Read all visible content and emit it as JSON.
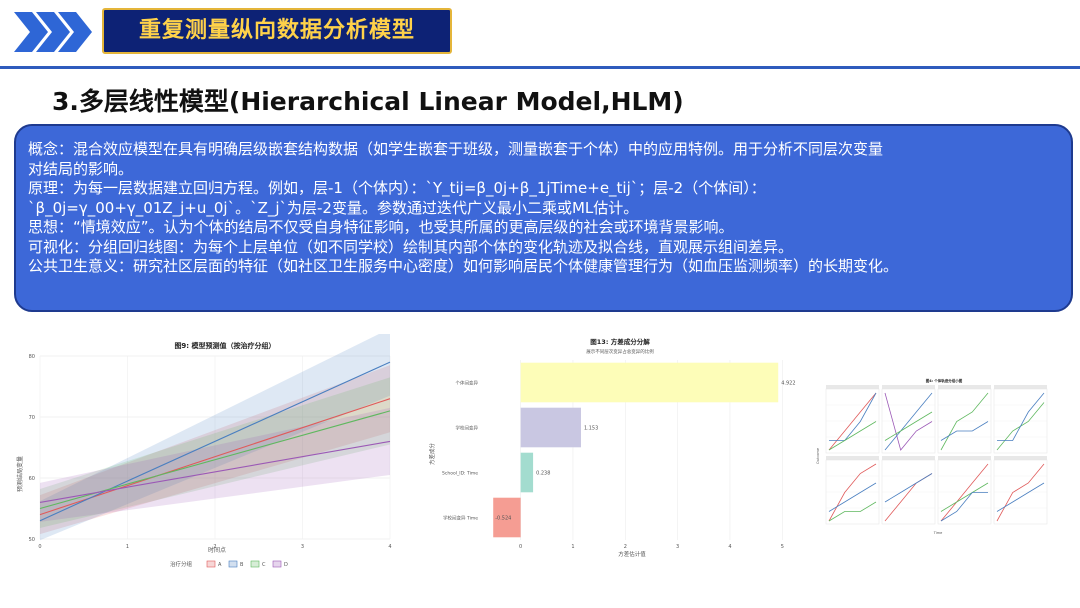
{
  "header": {
    "title": "重复测量纵向数据分析模型",
    "accent": "#0d2275",
    "title_color": "#ffd24a",
    "arrow_color": "#2e66d6"
  },
  "section": {
    "title": "3.多层线性模型(Hierarchical Linear Model,HLM)"
  },
  "concept": {
    "lines": [
      "概念：混合效应模型在具有明确层级嵌套结构数据（如学生嵌套于班级，测量嵌套于个体）中的应用特例。用于分析不同层次变量",
      "对结局的影响。",
      "原理：为每一层数据建立回归方程。例如，层-1（个体内）：`Y_tij=β_0j+β_1jTime+e_tij`；层-2（个体间）：",
      "`β_0j=γ_00+γ_01Z_j+u_0j`。`Z_j`为层-2变量。参数通过迭代广义最小二乘或ML估计。",
      "思想：“情境效应”。认为个体的结局不仅受自身特征影响，也受其所属的更高层级的社会或环境背景影响。",
      "可视化：分组回归线图：为每个上层单位（如不同学校）绘制其内部个体的变化轨迹及拟合线，直观展示组间差异。",
      "公共卫生意义：研究社区层面的特征（如社区卫生服务中心密度）如何影响居民个体健康管理行为（如血压监测频率）的长期变化。"
    ],
    "bg": "#3d68d8"
  },
  "chart_data": [
    {
      "type": "line",
      "title": "图9: 模型预测值（按治疗分组）",
      "xlabel": "时间点",
      "ylabel": "预测结局变量",
      "x": [
        0,
        1,
        2,
        3,
        4
      ],
      "xlim": [
        0,
        4
      ],
      "ylim": [
        50,
        80
      ],
      "yticks": [
        50,
        60,
        70,
        80
      ],
      "legend_title": "治疗分组",
      "legend_position": "bottom",
      "series": [
        {
          "name": "A",
          "color": "#e05a5a",
          "start": 54,
          "end": 73
        },
        {
          "name": "B",
          "color": "#4a7fc0",
          "start": 53,
          "end": 79
        },
        {
          "name": "C",
          "color": "#5fb85f",
          "start": 55,
          "end": 71
        },
        {
          "name": "D",
          "color": "#9b59b6",
          "start": 56,
          "end": 66
        }
      ]
    },
    {
      "type": "bar",
      "orientation": "horizontal",
      "title": "图13: 方差成分分解",
      "subtitle": "展示不同层次变异占总变异的比例",
      "xlabel": "方差估计值",
      "ylabel": "方差成分",
      "xlim": [
        -0.7,
        5.3
      ],
      "xticks": [
        0,
        1,
        2,
        3,
        4,
        5
      ],
      "categories": [
        "个体间变异",
        "学校间变异",
        "School_ID: Time",
        "学校间变异 Time"
      ],
      "values": [
        4.922,
        1.153,
        0.238,
        -0.524
      ],
      "colors": [
        "#fdfdb8",
        "#c9c7e2",
        "#a3dccf",
        "#f59d93"
      ]
    },
    {
      "type": "line",
      "title": "图4: 个体轨迹分组小图",
      "xlabel": "Time",
      "ylabel": "Outcome",
      "panels": [
        {
          "series": [
            {
              "color": "#e05a5a",
              "values": [
                1,
                3,
                5,
                7
              ]
            },
            {
              "color": "#4a7fc0",
              "values": [
                2,
                2,
                4,
                7
              ]
            },
            {
              "color": "#5fb85f",
              "values": [
                1,
                2,
                3,
                4
              ]
            }
          ]
        },
        {
          "series": [
            {
              "color": "#9b59b6",
              "values": [
                7,
                1,
                3,
                4
              ]
            },
            {
              "color": "#4a7fc0",
              "values": [
                1,
                3,
                5,
                7
              ]
            },
            {
              "color": "#5fb85f",
              "values": [
                2,
                3,
                4,
                5
              ]
            }
          ]
        },
        {
          "series": [
            {
              "color": "#5fb85f",
              "values": [
                1,
                4,
                5,
                7
              ]
            },
            {
              "color": "#4a7fc0",
              "values": [
                2,
                3,
                3,
                4
              ]
            }
          ]
        },
        {
          "series": [
            {
              "color": "#5fb85f",
              "values": [
                1,
                3,
                4,
                6
              ]
            },
            {
              "color": "#4a7fc0",
              "values": [
                2,
                2,
                5,
                7
              ]
            }
          ]
        },
        {
          "series": [
            {
              "color": "#e05a5a",
              "values": [
                1,
                4,
                6,
                7
              ]
            },
            {
              "color": "#4a7fc0",
              "values": [
                2,
                3,
                4,
                5
              ]
            },
            {
              "color": "#5fb85f",
              "values": [
                1,
                2,
                2,
                3
              ]
            }
          ]
        },
        {
          "series": [
            {
              "color": "#e05a5a",
              "values": [
                1,
                3,
                5,
                6
              ]
            },
            {
              "color": "#4a7fc0",
              "values": [
                3,
                4,
                5,
                6
              ]
            }
          ]
        },
        {
          "series": [
            {
              "color": "#e05a5a",
              "values": [
                1,
                3,
                5,
                7
              ]
            },
            {
              "color": "#5fb85f",
              "values": [
                2,
                3,
                4,
                5
              ]
            },
            {
              "color": "#4a7fc0",
              "values": [
                1,
                2,
                4,
                4
              ]
            }
          ]
        },
        {
          "series": [
            {
              "color": "#e05a5a",
              "values": [
                1,
                4,
                5,
                7
              ]
            },
            {
              "color": "#4a7fc0",
              "values": [
                2,
                3,
                4,
                5
              ]
            }
          ]
        }
      ]
    }
  ]
}
